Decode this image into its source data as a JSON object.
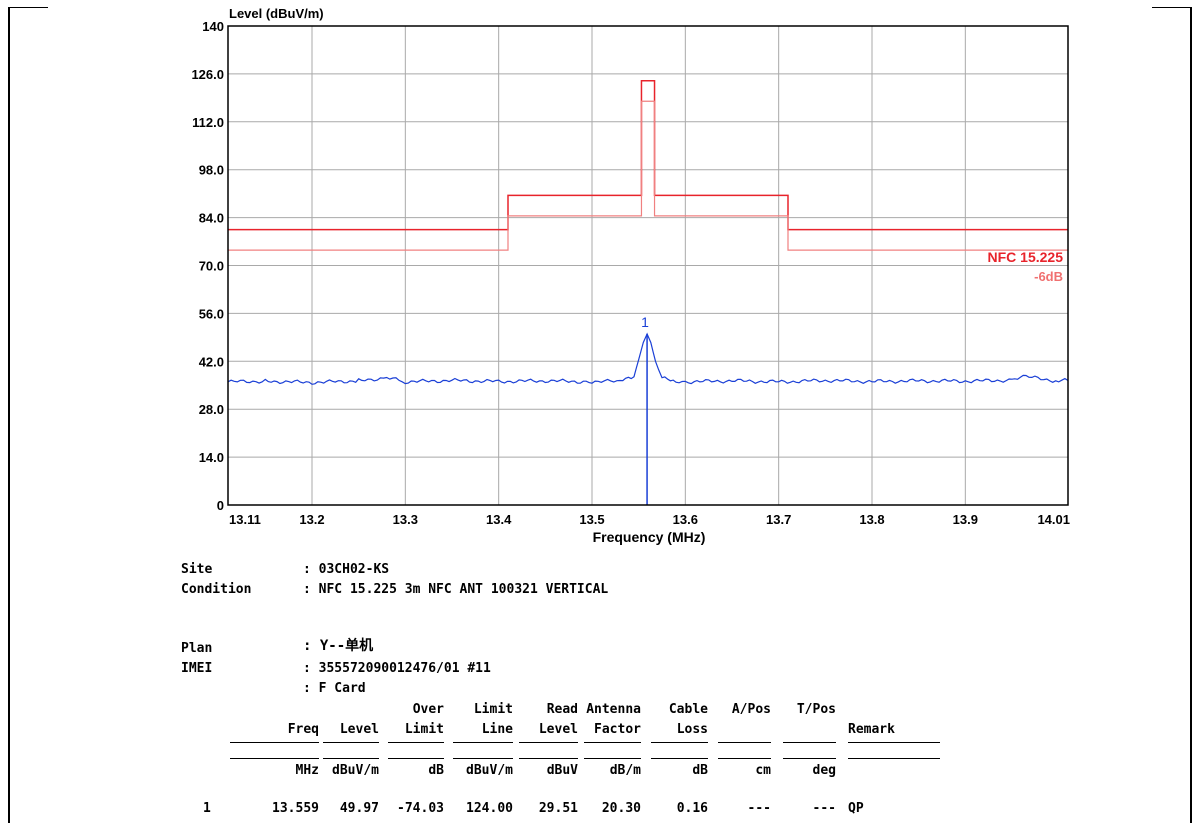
{
  "colors": {
    "limit": "#e8232b",
    "limit_margin": "#f08080",
    "trace": "#1a3fd6",
    "grid": "#a9a9a9",
    "axis_text": "#000000",
    "margin_label": "#f07070"
  },
  "chart_data": {
    "type": "line",
    "ylabel": "Level (dBuV/m)",
    "xlabel": "Frequency (MHz)",
    "xlim": [
      13.11,
      14.01
    ],
    "ylim": [
      0,
      140
    ],
    "x_ticks": [
      "13.11",
      "13.2",
      "13.3",
      "13.4",
      "13.5",
      "13.6",
      "13.7",
      "13.8",
      "13.9",
      "14.01"
    ],
    "x_tick_values": [
      13.11,
      13.2,
      13.3,
      13.4,
      13.5,
      13.6,
      13.7,
      13.8,
      13.9,
      14.01
    ],
    "y_ticks": [
      "0",
      "14.0",
      "28.0",
      "42.0",
      "56.0",
      "70.0",
      "84.0",
      "98.0",
      "112.0",
      "126.0",
      "140"
    ],
    "y_tick_values": [
      0,
      14,
      28,
      42,
      56,
      70,
      84,
      98,
      112,
      126,
      140
    ],
    "grid": true,
    "series": [
      {
        "name": "NFC 15.225",
        "kind": "limit",
        "x": [
          13.11,
          13.41,
          13.41,
          13.553,
          13.553,
          13.567,
          13.567,
          13.71,
          13.71,
          14.01
        ],
        "y": [
          80.5,
          80.5,
          90.5,
          90.5,
          124.0,
          124.0,
          90.5,
          90.5,
          80.5,
          80.5
        ]
      },
      {
        "name": "-6dB",
        "kind": "margin",
        "x": [
          13.11,
          13.41,
          13.41,
          13.553,
          13.553,
          13.567,
          13.567,
          13.71,
          13.71,
          14.01
        ],
        "y": [
          74.5,
          74.5,
          84.5,
          84.5,
          118.0,
          118.0,
          84.5,
          84.5,
          74.5,
          74.5
        ]
      },
      {
        "kind": "measurement",
        "x": [
          13.11,
          13.15,
          13.2,
          13.25,
          13.28,
          13.3,
          13.35,
          13.4,
          13.45,
          13.5,
          13.53,
          13.545,
          13.55,
          13.555,
          13.559,
          13.563,
          13.568,
          13.575,
          13.59,
          13.6,
          13.65,
          13.7,
          13.75,
          13.8,
          13.85,
          13.9,
          13.95,
          13.965,
          14.0,
          14.01
        ],
        "y": [
          36.0,
          36.2,
          35.8,
          36.3,
          37.2,
          36.0,
          36.4,
          36.1,
          36.3,
          36.0,
          36.2,
          37.5,
          42.5,
          47.5,
          49.97,
          47.5,
          42.0,
          37.0,
          36.2,
          36.0,
          36.3,
          36.0,
          36.4,
          36.1,
          36.3,
          36.2,
          36.5,
          37.5,
          36.2,
          36.4
        ]
      }
    ],
    "annotations": [
      {
        "text": "1",
        "x": 13.559,
        "y": 49.97,
        "kind": "marker"
      }
    ],
    "legend_labels": {
      "limit": "NFC 15.225",
      "margin": "-6dB"
    }
  },
  "info": {
    "site_label": "Site",
    "site_value": ": 03CH02-KS",
    "condition_label": "Condition",
    "condition_value": ": NFC 15.225 3m NFC ANT 100321 VERTICAL",
    "plan_label": "Plan",
    "plan_value": ": Y--单机",
    "imei_label": "IMEI",
    "imei_value": ": 355572090012476/01 #11",
    "card_value": ": F Card"
  },
  "table": {
    "header_row1": [
      "",
      "",
      "Over",
      "Limit",
      "Read",
      "Antenna",
      "Cable",
      "A/Pos",
      "T/Pos",
      ""
    ],
    "header_row2": [
      "Freq",
      "Level",
      "Limit",
      "Line",
      "Level",
      "Factor",
      "Loss",
      "",
      "",
      "Remark"
    ],
    "units": [
      "MHz",
      "dBuV/m",
      "dB",
      "dBuV/m",
      "dBuV",
      "dB/m",
      "dB",
      "cm",
      "deg",
      ""
    ],
    "rows": [
      {
        "index": "1",
        "cells": [
          "13.559",
          "49.97",
          "-74.03",
          "124.00",
          "29.51",
          "20.30",
          "0.16",
          "---",
          "---",
          "QP"
        ]
      }
    ]
  }
}
